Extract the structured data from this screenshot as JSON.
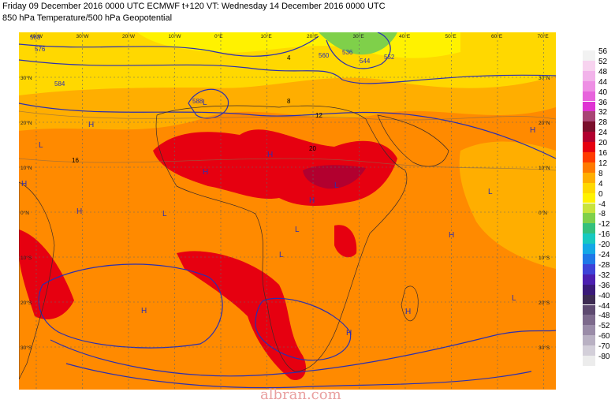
{
  "header": {
    "line1": "Friday 09 December 2016 0000 UTC  ECMWF  t+120  VT: Wednesday 14 December 2016 0000 UTC",
    "line2": "850 hPa Temperature/500 hPa Geopotential"
  },
  "axes": {
    "lon_labels": [
      "40°W",
      "30°W",
      "20°W",
      "10°W",
      "0°E",
      "10°E",
      "20°E",
      "30°E",
      "40°E",
      "50°E",
      "60°E",
      "70°E"
    ],
    "lat_labels_left": [
      "30°N",
      "20°N",
      "10°N",
      "0°N",
      "10°S",
      "20°S",
      "30°S"
    ],
    "lat_labels_right": [
      "30°N",
      "20°N",
      "10°N",
      "0°N",
      "10°S",
      "20°S",
      "30°S"
    ]
  },
  "colorbar": {
    "levels": [
      "56",
      "52",
      "48",
      "44",
      "40",
      "36",
      "32",
      "28",
      "24",
      "20",
      "16",
      "12",
      "8",
      "4",
      "0",
      "-4",
      "-8",
      "-12",
      "-16",
      "-20",
      "-24",
      "-28",
      "-32",
      "-36",
      "-40",
      "-44",
      "-48",
      "-52",
      "-60",
      "-70",
      "-80"
    ],
    "colors": [
      "#f2f2f2",
      "#f7d3ef",
      "#f2b3ea",
      "#ee8fe4",
      "#e763dc",
      "#df33d3",
      "#a84474",
      "#7a0f2b",
      "#b2002f",
      "#e60010",
      "#ff3b00",
      "#ff7a00",
      "#ffae00",
      "#ffd800",
      "#fff200",
      "#c8e43c",
      "#7fd04a",
      "#34c07c",
      "#17c9c0",
      "#14a8e6",
      "#1f78e8",
      "#3e43d8",
      "#4c1fb0",
      "#3a1a78",
      "#3d2b52",
      "#5e4a70",
      "#7d6a8c",
      "#9a8ca8",
      "#b9b1c3",
      "#d3cfd9",
      "#ececec"
    ]
  },
  "map": {
    "contour_labels": [
      "568",
      "576",
      "584",
      "552",
      "560",
      "544",
      "536",
      "588",
      "16",
      "12",
      "8",
      "20",
      "4"
    ],
    "highs_lows": [
      "L",
      "H"
    ]
  },
  "watermark": "albran.com"
}
